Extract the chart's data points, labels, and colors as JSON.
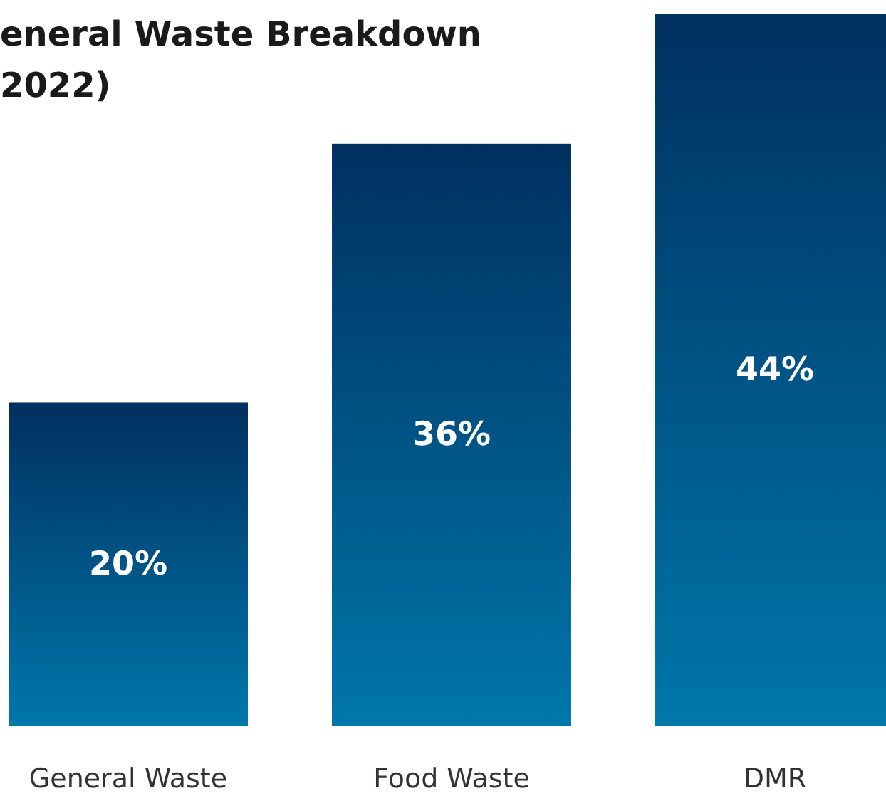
{
  "chart_data": {
    "type": "bar",
    "title": "eneral Waste Breakdown 2022)",
    "categories": [
      "General Waste",
      "Food Waste",
      "DMR"
    ],
    "values": [
      20,
      36,
      44
    ],
    "value_labels": [
      "20%",
      "36%",
      "44%"
    ],
    "color": "#003060"
  }
}
